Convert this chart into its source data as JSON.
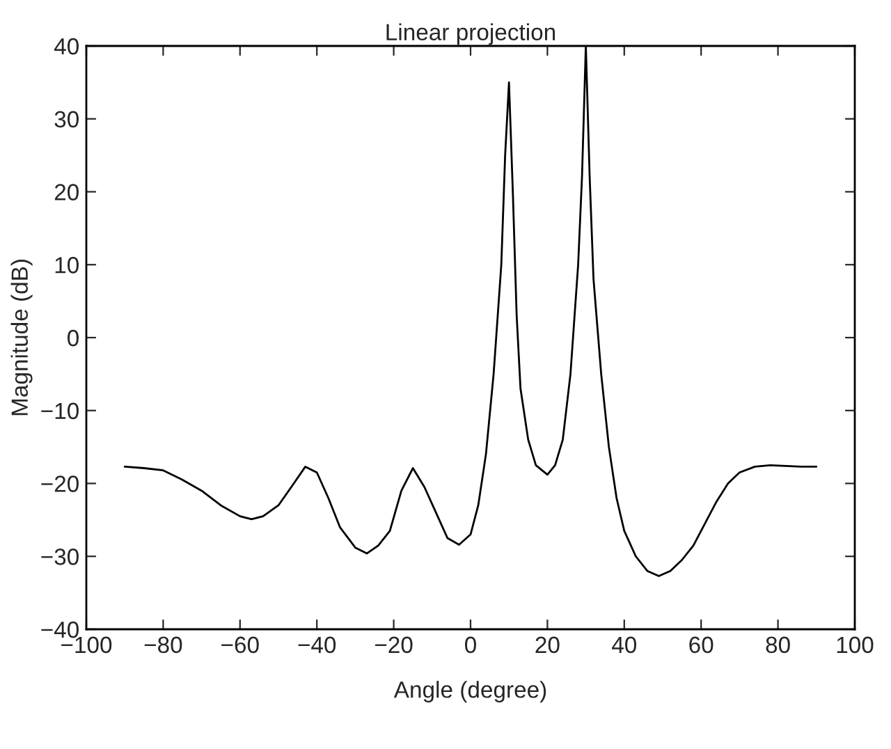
{
  "chart_data": {
    "type": "line",
    "title": "Linear projection",
    "xlabel": "Angle (degree)",
    "ylabel": "Magnitude (dB)",
    "series": [
      {
        "color": "#000000",
        "x": [
          -90,
          -85,
          -80,
          -75,
          -70,
          -65,
          -60,
          -57,
          -54,
          -50,
          -46,
          -43,
          -40,
          -37,
          -34,
          -30,
          -27,
          -24,
          -21,
          -18,
          -15,
          -12,
          -9,
          -6,
          -3,
          0,
          2,
          4,
          6,
          8,
          9,
          10,
          11,
          12,
          13,
          15,
          17,
          20,
          22,
          24,
          26,
          28,
          29,
          30,
          31,
          32,
          34,
          36,
          38,
          40,
          43,
          46,
          49,
          52,
          55,
          58,
          61,
          64,
          67,
          70,
          74,
          78,
          82,
          86,
          90
        ],
        "values": [
          -17.7,
          -17.9,
          -18.2,
          -19.5,
          -21,
          -23,
          -24.5,
          -24.9,
          -24.5,
          -23,
          -20,
          -17.7,
          -18.5,
          -22,
          -26,
          -28.8,
          -29.6,
          -28.5,
          -26.5,
          -21,
          -17.9,
          -20.5,
          -24,
          -27.5,
          -28.4,
          -27,
          -23,
          -16,
          -5,
          10,
          25,
          35,
          20,
          3,
          -7,
          -14,
          -17.5,
          -18.8,
          -17.5,
          -14,
          -5,
          10,
          22,
          40,
          22,
          8,
          -5,
          -15,
          -22,
          -26.5,
          -30,
          -32,
          -32.7,
          -32,
          -30.5,
          -28.5,
          -25.5,
          -22.5,
          -20,
          -18.5,
          -17.7,
          -17.5,
          -17.6,
          -17.7,
          -17.7
        ]
      }
    ],
    "xlim": [
      -100,
      100
    ],
    "ylim": [
      -40,
      40
    ],
    "xticks": [
      -100,
      -80,
      -60,
      -40,
      -20,
      0,
      20,
      40,
      60,
      80,
      100
    ],
    "yticks": [
      -40,
      -30,
      -20,
      -10,
      0,
      10,
      20,
      30,
      40
    ],
    "grid": false,
    "legend": false,
    "line_style": "solid",
    "marker": "none"
  }
}
